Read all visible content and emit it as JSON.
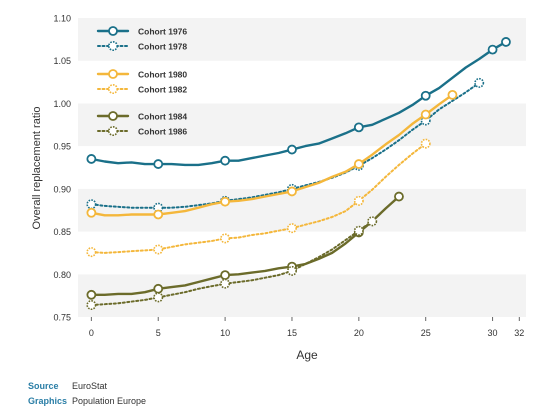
{
  "chart_data": {
    "type": "line",
    "xlabel": "Age",
    "ylabel": "Overall replacement ratio",
    "xlim": [
      -1,
      32.5
    ],
    "ylim": [
      0.75,
      1.1
    ],
    "x_ticks": [
      0,
      5,
      10,
      15,
      20,
      25,
      30,
      32
    ],
    "y_ticks": [
      0.75,
      0.8,
      0.85,
      0.9,
      0.95,
      1.0,
      1.05,
      1.1
    ],
    "y_tick_labels": [
      "0.75",
      "0.80",
      "0.85",
      "0.90",
      "0.95",
      "1.00",
      "1.05",
      "1.10"
    ],
    "grid": "horizontal bands",
    "legend_position": "top-left",
    "series": [
      {
        "name": "Cohort 1976",
        "color": "#1a7089",
        "dash": false,
        "x": [
          0,
          1,
          2,
          3,
          4,
          5,
          6,
          7,
          8,
          9,
          10,
          11,
          12,
          13,
          14,
          15,
          16,
          17,
          18,
          19,
          20,
          21,
          22,
          23,
          24,
          25,
          26,
          27,
          28,
          29,
          30,
          31
        ],
        "values": [
          0.935,
          0.932,
          0.93,
          0.931,
          0.929,
          0.929,
          0.929,
          0.928,
          0.928,
          0.93,
          0.933,
          0.933,
          0.936,
          0.939,
          0.942,
          0.946,
          0.95,
          0.953,
          0.959,
          0.965,
          0.972,
          0.975,
          0.982,
          0.989,
          0.998,
          1.009,
          1.018,
          1.03,
          1.042,
          1.052,
          1.063,
          1.072
        ],
        "markers": [
          0,
          5,
          10,
          15,
          20,
          25,
          30,
          31
        ]
      },
      {
        "name": "Cohort 1978",
        "color": "#1a7089",
        "dash": true,
        "x": [
          0,
          1,
          2,
          3,
          4,
          5,
          6,
          7,
          8,
          9,
          10,
          11,
          12,
          13,
          14,
          15,
          16,
          17,
          18,
          19,
          20,
          21,
          22,
          23,
          24,
          25,
          26,
          27,
          28,
          29
        ],
        "values": [
          0.882,
          0.88,
          0.879,
          0.878,
          0.878,
          0.878,
          0.878,
          0.879,
          0.881,
          0.883,
          0.886,
          0.888,
          0.89,
          0.893,
          0.896,
          0.9,
          0.904,
          0.908,
          0.913,
          0.919,
          0.927,
          0.936,
          0.946,
          0.957,
          0.969,
          0.98,
          0.993,
          1.003,
          1.013,
          1.024
        ],
        "markers": [
          0,
          5,
          10,
          15,
          20,
          25,
          29
        ]
      },
      {
        "name": "Cohort 1980",
        "color": "#f4b73b",
        "dash": false,
        "x": [
          0,
          1,
          2,
          3,
          4,
          5,
          6,
          7,
          8,
          9,
          10,
          11,
          12,
          13,
          14,
          15,
          16,
          17,
          18,
          19,
          20,
          21,
          22,
          23,
          24,
          25,
          26,
          27
        ],
        "values": [
          0.872,
          0.869,
          0.869,
          0.87,
          0.87,
          0.87,
          0.872,
          0.874,
          0.878,
          0.882,
          0.885,
          0.886,
          0.888,
          0.891,
          0.894,
          0.897,
          0.902,
          0.907,
          0.914,
          0.92,
          0.929,
          0.94,
          0.952,
          0.963,
          0.976,
          0.987,
          0.999,
          1.01
        ],
        "markers": [
          0,
          5,
          10,
          15,
          20,
          25,
          27
        ]
      },
      {
        "name": "Cohort 1982",
        "color": "#f4b73b",
        "dash": true,
        "x": [
          0,
          1,
          2,
          3,
          4,
          5,
          6,
          7,
          8,
          9,
          10,
          11,
          12,
          13,
          14,
          15,
          16,
          17,
          18,
          19,
          20,
          21,
          22,
          23,
          24,
          25
        ],
        "values": [
          0.826,
          0.825,
          0.826,
          0.827,
          0.828,
          0.829,
          0.832,
          0.835,
          0.837,
          0.839,
          0.842,
          0.843,
          0.846,
          0.848,
          0.851,
          0.854,
          0.858,
          0.862,
          0.867,
          0.874,
          0.886,
          0.899,
          0.914,
          0.928,
          0.941,
          0.953
        ],
        "markers": [
          0,
          5,
          10,
          15,
          20,
          25
        ]
      },
      {
        "name": "Cohort 1984",
        "color": "#6b6b2a",
        "dash": false,
        "x": [
          0,
          1,
          2,
          3,
          4,
          5,
          6,
          7,
          8,
          9,
          10,
          11,
          12,
          13,
          14,
          15,
          16,
          17,
          18,
          19,
          20,
          21,
          22,
          23
        ],
        "values": [
          0.776,
          0.776,
          0.777,
          0.777,
          0.779,
          0.783,
          0.785,
          0.787,
          0.791,
          0.795,
          0.799,
          0.8,
          0.802,
          0.804,
          0.807,
          0.809,
          0.812,
          0.818,
          0.825,
          0.836,
          0.849,
          0.862,
          0.877,
          0.891
        ],
        "markers": [
          0,
          5,
          10,
          15,
          20,
          23
        ]
      },
      {
        "name": "Cohort 1986",
        "color": "#6b6b2a",
        "dash": true,
        "x": [
          0,
          1,
          2,
          3,
          4,
          5,
          6,
          7,
          8,
          9,
          10,
          11,
          12,
          13,
          14,
          15,
          16,
          17,
          18,
          19,
          20,
          21
        ],
        "values": [
          0.764,
          0.765,
          0.766,
          0.768,
          0.77,
          0.773,
          0.776,
          0.779,
          0.783,
          0.786,
          0.789,
          0.791,
          0.793,
          0.796,
          0.799,
          0.804,
          0.812,
          0.82,
          0.829,
          0.84,
          0.851,
          0.862
        ],
        "markers": [
          0,
          5,
          10,
          15,
          20,
          21
        ]
      }
    ]
  },
  "footer": {
    "source_key": "Source",
    "source_value": "EuroStat",
    "graphics_key": "Graphics",
    "graphics_value": "Population Europe"
  }
}
